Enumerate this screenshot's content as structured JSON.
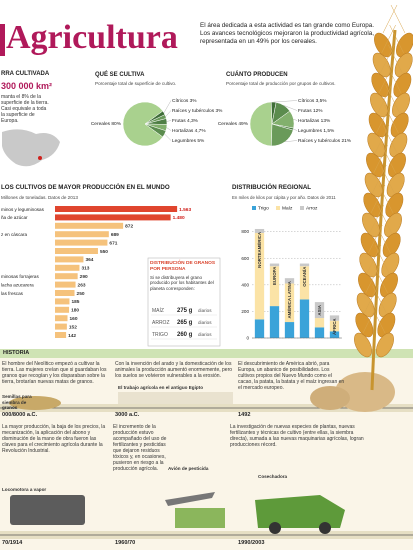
{
  "header": {
    "title": "Agricultura",
    "intro": "El área dedicada a esta actividad es tan grande como Europa. Los avances tecnológicos mejoraron la productividad agrícola, representada en un 49% por los cereales."
  },
  "land": {
    "heading": "RRA CULTIVADA",
    "area": "300 000 km²",
    "text": "manta el 8% de la superficie de la tierra. Casi equivale a toda la superficie de Europa."
  },
  "chart_data": [
    {
      "type": "pie",
      "title": "QUÉ SE CULTIVA",
      "subtitle": "Porcentaje total de superficie de cultivo.",
      "categories": [
        "Cereales",
        "Cítricos",
        "Raíces y tubérculos",
        "Frutas",
        "Hortalizas",
        "Legumbres"
      ],
      "values": [
        80,
        3,
        3,
        4.3,
        4.7,
        5
      ],
      "value_labels": [
        "80%",
        "3%",
        "3%",
        "4,3%",
        "4,7%",
        "5%"
      ],
      "colors": [
        "#a9d18e",
        "#3f6e38",
        "#6a9a5a",
        "#4f7f45",
        "#82b06d",
        "#5b8c4e"
      ]
    },
    {
      "type": "pie",
      "title": "CUÁNTO PRODUCEN",
      "subtitle": "Porcentaje total de producción por grupos de cultivos.",
      "categories": [
        "Cereales",
        "Cítricos",
        "Frutas",
        "Hortalizas",
        "Legumbres",
        "Raíces y tubérculos"
      ],
      "values": [
        49,
        3.5,
        12,
        13,
        1.5,
        21
      ],
      "value_labels": [
        "49%",
        "3,5%",
        "12%",
        "13%",
        "1,5%",
        "21%"
      ],
      "colors": [
        "#a9d18e",
        "#3f6e38",
        "#5b8c4e",
        "#82b06d",
        "#4f7f45",
        "#6a9a5a"
      ]
    },
    {
      "type": "bar",
      "orientation": "horizontal",
      "title": "LOS CULTIVOS DE MAYOR PRODUCCIÓN EN EL MUNDO",
      "subtitle": "Millones de toneladas. Datos de 2013",
      "categories": [
        "minos y leguminosas",
        "ña de azúcar",
        null,
        "z en cáscara",
        null,
        null,
        null,
        null,
        "minosas forrajeras",
        "lacha azucarera",
        "las frescas",
        null,
        null,
        null,
        null,
        null
      ],
      "values": [
        1563,
        1480,
        872,
        689,
        671,
        550,
        364,
        313,
        290,
        263,
        250,
        185,
        180,
        160,
        152,
        142
      ],
      "value_labels": [
        "1.563",
        "1.480",
        "872",
        "689",
        "671",
        "550",
        "364",
        "313",
        "290",
        "263",
        "250",
        "185",
        "180",
        "160",
        "152",
        "142"
      ],
      "colors": [
        "#e0452e",
        "#e0452e",
        "#f5c27c",
        "#f5c27c",
        "#f5c27c",
        "#f5c27c",
        "#f5c27c",
        "#f5c27c",
        "#f5c27c",
        "#f5c27c",
        "#f5c27c",
        "#f5c27c",
        "#f5c27c",
        "#f5c27c",
        "#f5c27c",
        "#f5c27c"
      ],
      "xlim": [
        0,
        1600
      ]
    },
    {
      "type": "bar",
      "stacked": true,
      "title": "DISTRIBUCIÓN REGIONAL",
      "subtitle": "En miles de kilos por cápita y por año. Datos de 2011",
      "categories": [
        "NORTEAMÉRICA",
        "EUROPA",
        "AMÉRICA LATINA",
        "OCEANÍA",
        "ASIA",
        "ÁFRICA"
      ],
      "series": [
        {
          "name": "Trigo",
          "color": "#3aa3d9",
          "values": [
            140,
            240,
            120,
            290,
            80,
            50
          ]
        },
        {
          "name": "Maíz",
          "color": "#fbe3a6",
          "values": [
            650,
            300,
            290,
            250,
            70,
            80
          ]
        },
        {
          "name": "Arroz",
          "color": "#c9c9c9",
          "values": [
            30,
            20,
            40,
            20,
            120,
            40
          ]
        }
      ],
      "ylim": [
        0,
        850
      ],
      "yticks": [
        0,
        200,
        400,
        600,
        800
      ],
      "grid": true,
      "legend": "top"
    }
  ],
  "grain_box": {
    "title": "DISTRIBUCIÓN DE GRANOS POR PERSONA",
    "text": "Si se distribuyera el grano producido por los habitantes del planeta corresponden:",
    "rows": [
      [
        "MAÍZ",
        "275 g",
        "diarios"
      ],
      [
        "ARROZ",
        "265 g",
        "diarios"
      ],
      [
        "TRIGO",
        "260 g",
        "diarios"
      ]
    ]
  },
  "history": {
    "title": "HISTORIA",
    "events": [
      {
        "date": "000/8000 a.C.",
        "text": "El hombre del Neolítico empezó a cultivar la tierra. Las mujeres creían que si guardaban los granos que recogían y los disparaban sobre la tierra, brotarían nuevas matas de granos.",
        "caption": "Semillas para siembra de granos"
      },
      {
        "date": "3000 a.C.",
        "text": "Con la invención del arado y la domesticación de los animales la producción aumentó enormemente, pero los suelos se volvieron vulnerables a la erosión.",
        "caption": "El trabajo agrícola en el antiguo Egipto"
      },
      {
        "date": "1492",
        "text": "El descubrimiento de América abrió, para Europa, un abanico de posibilidades. Los cultivos propios del Nuevo Mundo como el cacao, la patata, la batata y el maíz ingresan en el mercado europeo."
      },
      {
        "date": "70/1914",
        "text": "La mayor producción, la baja de los precios, la mecanización, la aplicación del abono y disminución de la mano de obra fueron las claves para el crecimiento agrícola durante la Revolución Industrial.",
        "caption": "Locomotora a vapor"
      },
      {
        "date": "1960/70",
        "text": "El incremento de la producción estuvo acompañado del uso de fertilizantes y pesticidas que dejaron residuos tóxicos y, en ocasiones, pusieron en riesgo a la producción agrícola.",
        "caption": "Avión de pesticida"
      },
      {
        "date": "1990/2003",
        "text": "La investigación de nuevas especies de plantas, nuevas fertilizantes y técnicas de cultivo (entre ellas, la siembra directa), sumada a las nuevas maquinarias agrícolas, logran producciones récord.",
        "caption": "Cosechadora"
      }
    ]
  }
}
